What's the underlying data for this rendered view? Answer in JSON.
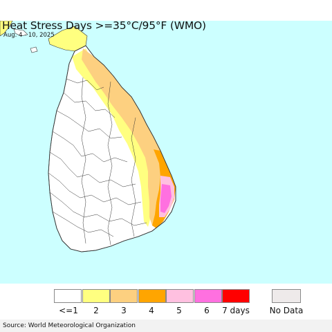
{
  "header": {
    "title": "Heat Stress Days >=35°C/95°F (WMO)",
    "subtitle": "Aug. 4 - 10, 2025"
  },
  "map": {
    "ocean_color": "#ccffff",
    "land_color": "#ffffff",
    "border_color": "#333333",
    "region": "Sri Lanka"
  },
  "legend": {
    "categories": [
      {
        "label": "<=1",
        "color": "#ffffff"
      },
      {
        "label": "2",
        "color": "#ffff80"
      },
      {
        "label": "3",
        "color": "#fdd080"
      },
      {
        "label": "4",
        "color": "#ffa500"
      },
      {
        "label": "5",
        "color": "#ffc0e0"
      },
      {
        "label": "6",
        "color": "#ff70e0"
      },
      {
        "label": "7 days",
        "color": "#ff0000"
      }
    ],
    "no_data": {
      "label": "No Data",
      "color": "#eeeaea"
    }
  },
  "footer": {
    "source": "Source: World Meteorological Organization"
  }
}
